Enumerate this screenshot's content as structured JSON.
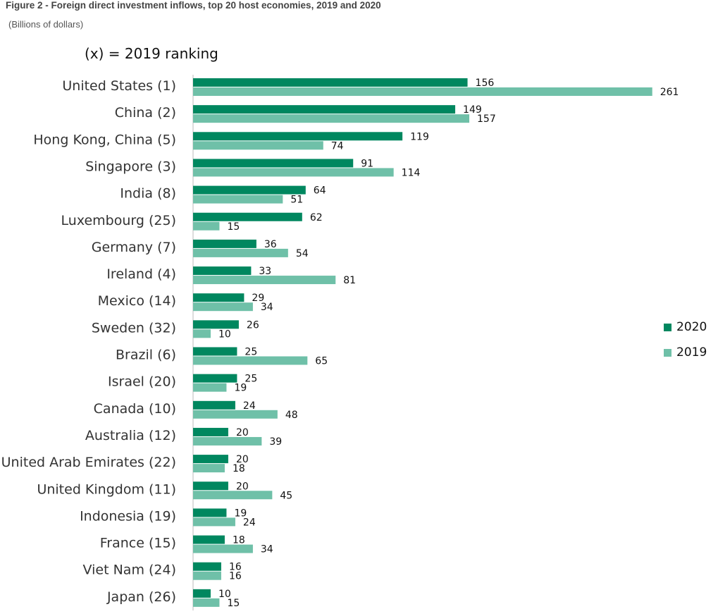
{
  "figure": {
    "title": "Figure 2 - Foreign direct investment inflows, top 20 host economies, 2019 and 2020",
    "subtitle": "(Billions of dollars)",
    "note": "(x) = 2019 ranking"
  },
  "colors": {
    "series_2020": "#00875f",
    "series_2019": "#6fc0a8"
  },
  "chart_data": {
    "type": "bar",
    "orientation": "horizontal",
    "categories": [
      "United States (1)",
      "China (2)",
      "Hong Kong, China (5)",
      "Singapore (3)",
      "India (8)",
      "Luxembourg (25)",
      "Germany (7)",
      "Ireland (4)",
      "Mexico (14)",
      "Sweden (32)",
      "Brazil (6)",
      "Israel (20)",
      "Canada (10)",
      "Australia (12)",
      "United Arab Emirates (22)",
      "United Kingdom (11)",
      "Indonesia (19)",
      "France (15)",
      "Viet Nam (24)",
      "Japan (26)"
    ],
    "series": [
      {
        "name": "2020",
        "color": "#00875f",
        "values": [
          156,
          149,
          119,
          91,
          64,
          62,
          36,
          33,
          29,
          26,
          25,
          25,
          24,
          20,
          20,
          20,
          19,
          18,
          16,
          10
        ]
      },
      {
        "name": "2019",
        "color": "#6fc0a8",
        "values": [
          261,
          157,
          74,
          114,
          51,
          15,
          54,
          81,
          34,
          10,
          65,
          19,
          48,
          39,
          18,
          45,
          24,
          34,
          16,
          15
        ]
      }
    ],
    "legend_position": "right",
    "grid": false,
    "xlim": [
      0,
      270
    ]
  }
}
